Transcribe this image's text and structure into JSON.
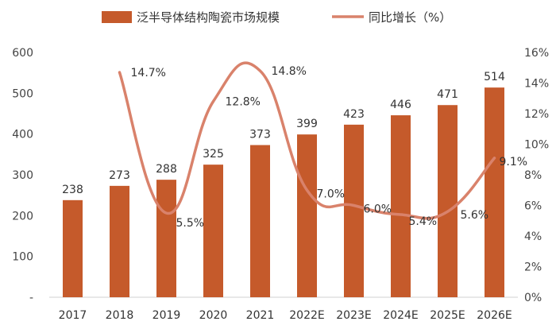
{
  "chart_data": {
    "type": "bar",
    "categories": [
      "2017",
      "2018",
      "2019",
      "2020",
      "2021",
      "2022E",
      "2023E",
      "2024E",
      "2025E",
      "2026E"
    ],
    "series": [
      {
        "name": "泛半导体结构陶瓷市场规模",
        "type": "bar",
        "axis": "left",
        "values": [
          238,
          273,
          288,
          325,
          373,
          399,
          423,
          446,
          471,
          514
        ],
        "color": "#C55A2B"
      },
      {
        "name": "同比增长（%）",
        "type": "line",
        "axis": "right",
        "values": [
          null,
          14.7,
          5.5,
          12.8,
          14.8,
          7.0,
          6.0,
          5.4,
          5.6,
          9.1
        ],
        "labels": [
          "",
          "14.7%",
          "5.5%",
          "12.8%",
          "14.8%",
          "7.0%",
          "6.0%",
          "5.4%",
          "5.6%",
          "9.1%"
        ],
        "color": "#D9826B"
      }
    ],
    "left_axis": {
      "min": 0,
      "max": 600,
      "ticks": [
        "-",
        "100",
        "200",
        "300",
        "400",
        "500",
        "600"
      ]
    },
    "right_axis": {
      "min": 0,
      "max": 16,
      "ticks": [
        "0%",
        "2%",
        "4%",
        "6%",
        "8%",
        "10%",
        "12%",
        "14%",
        "16%"
      ]
    },
    "legend": "top-center"
  }
}
